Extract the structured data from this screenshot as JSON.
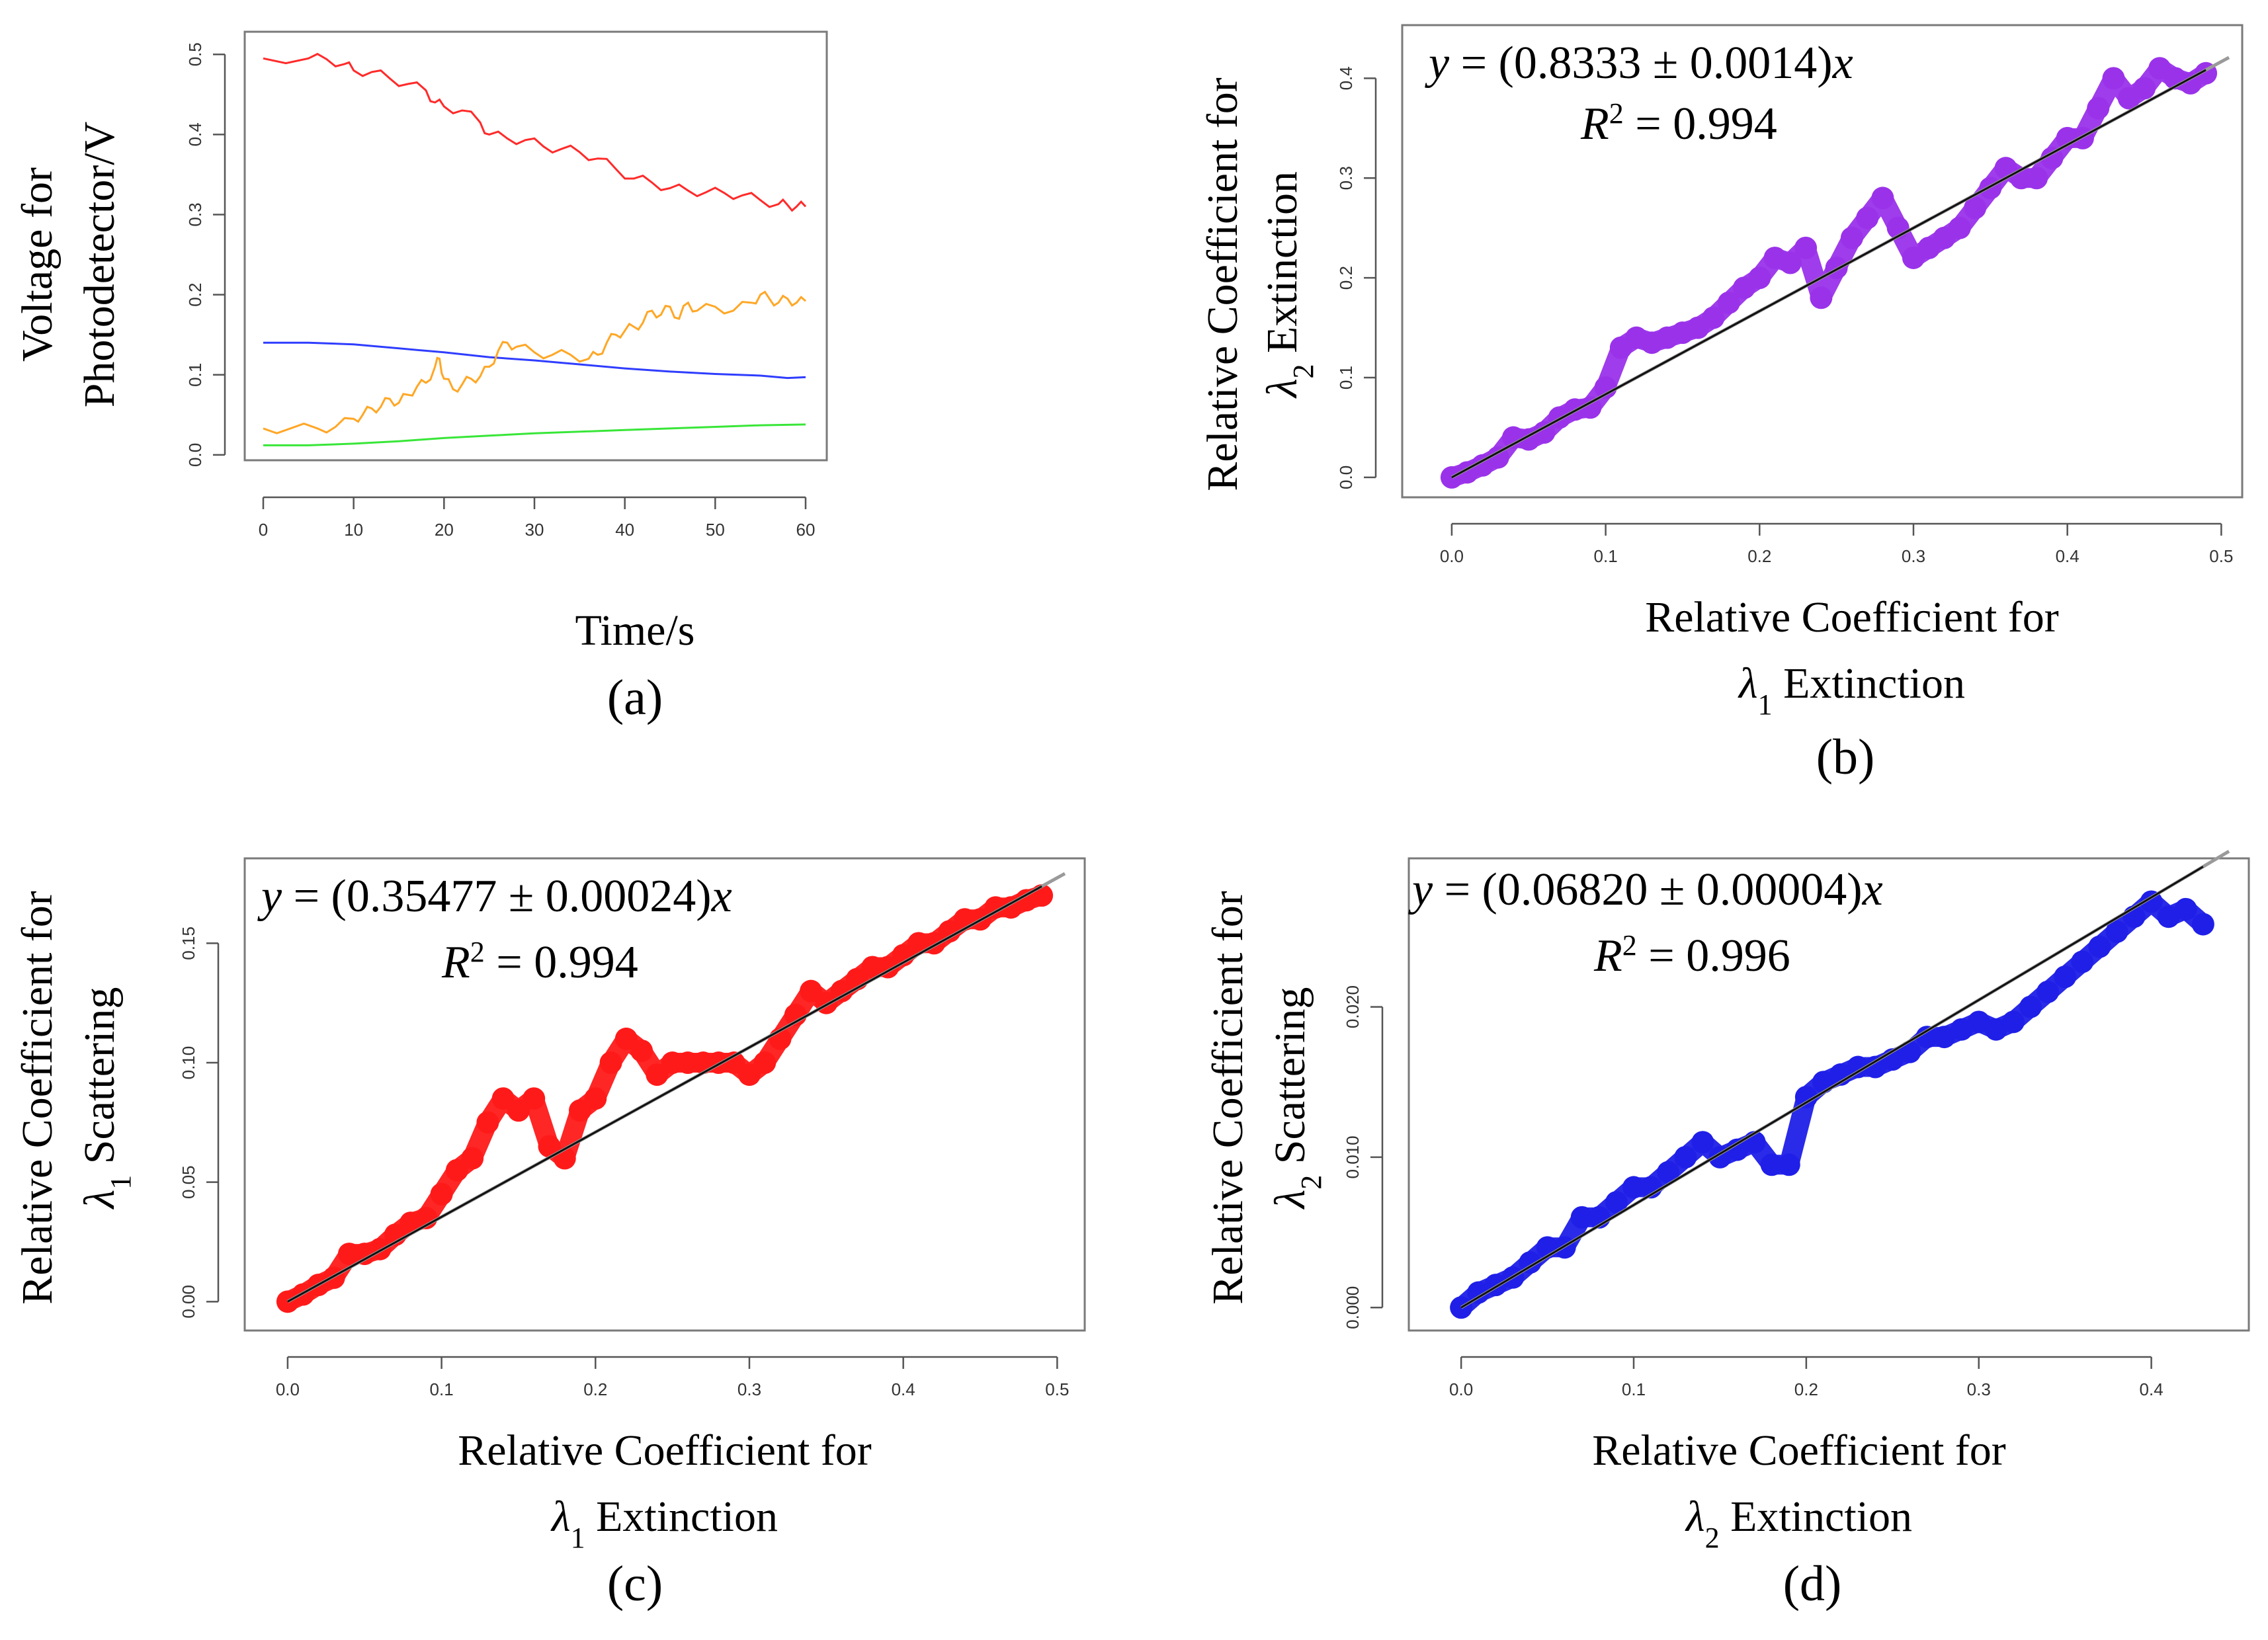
{
  "chart_data": [
    {
      "id": "a",
      "type": "line",
      "panel_label": "(a)",
      "xlabel": "Time/s",
      "ylabel_lines": [
        "Voltage for",
        "Photodetector/V"
      ],
      "xlim": [
        0,
        60
      ],
      "ylim": [
        -0.01,
        0.52
      ],
      "xticks": [
        0,
        10,
        20,
        30,
        40,
        50,
        60
      ],
      "yticks": [
        0.0,
        0.1,
        0.2,
        0.3,
        0.4,
        0.5
      ],
      "ytick_labels": [
        "0.0",
        "0.1",
        "0.2",
        "0.3",
        "0.4",
        "0.5"
      ],
      "series": [
        {
          "name": "red",
          "color": "#ff2a2a",
          "x": [
            0,
            5,
            7,
            9,
            10,
            12,
            14,
            16,
            18,
            19,
            20,
            22,
            24,
            25,
            27,
            29,
            31,
            33,
            35,
            37,
            39,
            41,
            43,
            45,
            47,
            49,
            51,
            53,
            55,
            57,
            58,
            59,
            60
          ],
          "y": [
            0.495,
            0.495,
            0.494,
            0.488,
            0.48,
            0.478,
            0.47,
            0.463,
            0.455,
            0.44,
            0.435,
            0.43,
            0.415,
            0.4,
            0.395,
            0.393,
            0.385,
            0.382,
            0.378,
            0.37,
            0.357,
            0.345,
            0.34,
            0.333,
            0.33,
            0.328,
            0.327,
            0.324,
            0.318,
            0.313,
            0.312,
            0.31,
            0.31
          ]
        },
        {
          "name": "blue",
          "color": "#2f3dff",
          "x": [
            0,
            5,
            10,
            15,
            20,
            25,
            30,
            35,
            40,
            45,
            50,
            55,
            58,
            60
          ],
          "y": [
            0.14,
            0.14,
            0.138,
            0.133,
            0.128,
            0.122,
            0.118,
            0.113,
            0.108,
            0.104,
            0.101,
            0.099,
            0.096,
            0.097
          ]
        },
        {
          "name": "orange",
          "color": "#ffa726",
          "x": [
            0,
            3,
            6,
            8,
            10,
            11,
            12,
            13,
            14,
            15,
            16,
            17,
            18,
            19,
            19.5,
            20,
            21,
            22,
            23,
            24,
            25,
            26,
            27,
            28,
            30,
            32,
            34,
            36,
            37,
            38,
            39,
            40,
            41,
            42,
            43,
            44,
            45,
            46,
            47,
            48,
            50,
            52,
            54,
            55,
            56,
            57,
            58,
            59,
            60
          ],
          "y": [
            0.033,
            0.033,
            0.033,
            0.035,
            0.045,
            0.05,
            0.058,
            0.06,
            0.07,
            0.065,
            0.075,
            0.085,
            0.09,
            0.11,
            0.12,
            0.095,
            0.082,
            0.088,
            0.095,
            0.098,
            0.11,
            0.13,
            0.14,
            0.135,
            0.128,
            0.125,
            0.125,
            0.12,
            0.125,
            0.14,
            0.15,
            0.155,
            0.16,
            0.165,
            0.18,
            0.175,
            0.185,
            0.17,
            0.19,
            0.18,
            0.185,
            0.18,
            0.19,
            0.2,
            0.195,
            0.19,
            0.195,
            0.19,
            0.192
          ]
        },
        {
          "name": "green",
          "color": "#38e638",
          "x": [
            0,
            5,
            10,
            15,
            20,
            25,
            30,
            35,
            40,
            45,
            50,
            55,
            60
          ],
          "y": [
            0.012,
            0.012,
            0.014,
            0.017,
            0.021,
            0.024,
            0.027,
            0.029,
            0.031,
            0.033,
            0.035,
            0.037,
            0.038
          ]
        }
      ]
    },
    {
      "id": "b",
      "type": "scatter",
      "panel_label": "(b)",
      "xlabel": "Relative Coefficient for",
      "xlabel_line2": "Extinction",
      "xlabel_symbol": "λ",
      "xlabel_sub": "1",
      "ylabel": "Relative Coefficient for",
      "ylabel_line2": "Extinction",
      "ylabel_symbol": "λ",
      "ylabel_sub": "2",
      "xlim": [
        -0.015,
        0.505
      ],
      "ylim": [
        -0.012,
        0.44
      ],
      "xticks": [
        0.0,
        0.1,
        0.2,
        0.3,
        0.4,
        0.5
      ],
      "xtick_labels": [
        "0.0",
        "0.1",
        "0.2",
        "0.3",
        "0.4",
        "0.5"
      ],
      "yticks": [
        0.0,
        0.1,
        0.2,
        0.3,
        0.4
      ],
      "ytick_labels": [
        "0.0",
        "0.1",
        "0.2",
        "0.3",
        "0.4"
      ],
      "color": "#9a32ea",
      "fit_slope": 0.8333,
      "equation": {
        "lhs": "y",
        "mid": " = (0.8333 ± 0.0014)",
        "rhs": "x",
        "r2_sym": "R",
        "r2_exp": "2",
        "r2_val": " = 0.994"
      },
      "x": [
        0.0,
        0.01,
        0.02,
        0.03,
        0.04,
        0.05,
        0.06,
        0.07,
        0.08,
        0.09,
        0.1,
        0.11,
        0.12,
        0.13,
        0.14,
        0.15,
        0.16,
        0.17,
        0.18,
        0.19,
        0.2,
        0.21,
        0.22,
        0.23,
        0.24,
        0.25,
        0.26,
        0.27,
        0.28,
        0.29,
        0.3,
        0.31,
        0.32,
        0.33,
        0.34,
        0.35,
        0.36,
        0.37,
        0.38,
        0.39,
        0.4,
        0.41,
        0.42,
        0.43,
        0.44,
        0.45,
        0.46,
        0.47,
        0.48,
        0.49
      ],
      "y": [
        0.0,
        0.005,
        0.012,
        0.02,
        0.04,
        0.038,
        0.045,
        0.06,
        0.068,
        0.07,
        0.09,
        0.13,
        0.14,
        0.135,
        0.14,
        0.145,
        0.15,
        0.16,
        0.175,
        0.19,
        0.2,
        0.22,
        0.215,
        0.23,
        0.18,
        0.21,
        0.24,
        0.26,
        0.28,
        0.25,
        0.22,
        0.23,
        0.24,
        0.25,
        0.27,
        0.29,
        0.31,
        0.3,
        0.3,
        0.32,
        0.34,
        0.34,
        0.37,
        0.4,
        0.38,
        0.39,
        0.41,
        0.4,
        0.395,
        0.405
      ]
    },
    {
      "id": "c",
      "type": "scatter",
      "panel_label": "(c)",
      "xlabel": "Relative Coefficient for",
      "xlabel_line2": "Extinction",
      "xlabel_symbol": "λ",
      "xlabel_sub": "1",
      "ylabel": "Relative Coefficient for",
      "ylabel_line2": "Scattering",
      "ylabel_symbol": "λ",
      "ylabel_sub": "1",
      "xlim": [
        -0.015,
        0.505
      ],
      "ylim": [
        -0.006,
        0.18
      ],
      "xticks": [
        0.0,
        0.1,
        0.2,
        0.3,
        0.4,
        0.5
      ],
      "xtick_labels": [
        "0.0",
        "0.1",
        "0.2",
        "0.3",
        "0.4",
        "0.5"
      ],
      "yticks": [
        0.0,
        0.05,
        0.1,
        0.15
      ],
      "ytick_labels": [
        "0.00",
        "0.05",
        "0.10",
        "0.15"
      ],
      "color": "#ff1a1a",
      "fit_slope": 0.35477,
      "equation": {
        "lhs": "y",
        "mid": " = (0.35477 ± 0.00024)",
        "rhs": "x",
        "r2_sym": "R",
        "r2_exp": "2",
        "r2_val": " = 0.994"
      },
      "x": [
        0.0,
        0.01,
        0.02,
        0.03,
        0.04,
        0.05,
        0.06,
        0.07,
        0.08,
        0.09,
        0.1,
        0.11,
        0.12,
        0.13,
        0.14,
        0.15,
        0.16,
        0.17,
        0.18,
        0.19,
        0.2,
        0.21,
        0.22,
        0.23,
        0.24,
        0.25,
        0.26,
        0.27,
        0.28,
        0.29,
        0.3,
        0.31,
        0.32,
        0.33,
        0.34,
        0.35,
        0.36,
        0.37,
        0.38,
        0.39,
        0.4,
        0.41,
        0.42,
        0.43,
        0.44,
        0.45,
        0.46,
        0.47,
        0.48,
        0.49
      ],
      "y": [
        0.0,
        0.003,
        0.007,
        0.01,
        0.02,
        0.02,
        0.022,
        0.028,
        0.033,
        0.035,
        0.045,
        0.055,
        0.06,
        0.075,
        0.085,
        0.08,
        0.085,
        0.065,
        0.06,
        0.08,
        0.085,
        0.1,
        0.11,
        0.105,
        0.095,
        0.1,
        0.1,
        0.1,
        0.1,
        0.1,
        0.095,
        0.1,
        0.11,
        0.12,
        0.13,
        0.125,
        0.13,
        0.135,
        0.14,
        0.14,
        0.145,
        0.15,
        0.15,
        0.155,
        0.16,
        0.16,
        0.165,
        0.165,
        0.168,
        0.17
      ]
    },
    {
      "id": "d",
      "type": "scatter",
      "panel_label": "(d)",
      "xlabel": "Relative Coefficient for",
      "xlabel_line2": "Extinction",
      "xlabel_symbol": "λ",
      "xlabel_sub": "2",
      "ylabel": "Relative Coefficient for",
      "ylabel_line2": "Scattering",
      "ylabel_symbol": "λ",
      "ylabel_sub": "2",
      "xlim": [
        -0.015,
        0.445
      ],
      "ylim": [
        -0.001,
        0.029
      ],
      "xticks": [
        0.0,
        0.1,
        0.2,
        0.3,
        0.4
      ],
      "xtick_labels": [
        "0.0",
        "0.1",
        "0.2",
        "0.3",
        "0.4"
      ],
      "yticks": [
        0.0,
        0.01,
        0.02
      ],
      "ytick_labels": [
        "0.000",
        "0.010",
        "0.020"
      ],
      "color": "#1f1fe8",
      "fit_slope": 0.0682,
      "equation": {
        "lhs": "y",
        "mid": " = (0.06820 ± 0.00004)",
        "rhs": "x",
        "r2_sym": "R",
        "r2_exp": "2",
        "r2_val": " = 0.996"
      },
      "x": [
        0.0,
        0.01,
        0.02,
        0.03,
        0.04,
        0.05,
        0.06,
        0.07,
        0.08,
        0.09,
        0.1,
        0.11,
        0.12,
        0.13,
        0.14,
        0.15,
        0.16,
        0.17,
        0.18,
        0.19,
        0.2,
        0.21,
        0.22,
        0.23,
        0.24,
        0.25,
        0.26,
        0.27,
        0.28,
        0.29,
        0.3,
        0.31,
        0.32,
        0.33,
        0.34,
        0.35,
        0.36,
        0.37,
        0.38,
        0.39,
        0.4,
        0.41,
        0.42,
        0.43
      ],
      "y": [
        0.0,
        0.001,
        0.0015,
        0.002,
        0.003,
        0.004,
        0.004,
        0.006,
        0.006,
        0.007,
        0.008,
        0.008,
        0.009,
        0.01,
        0.011,
        0.01,
        0.0105,
        0.011,
        0.0095,
        0.0095,
        0.014,
        0.015,
        0.0155,
        0.016,
        0.016,
        0.0165,
        0.017,
        0.018,
        0.018,
        0.0185,
        0.019,
        0.0185,
        0.019,
        0.02,
        0.021,
        0.022,
        0.023,
        0.024,
        0.025,
        0.026,
        0.027,
        0.026,
        0.0265,
        0.0255
      ]
    }
  ]
}
